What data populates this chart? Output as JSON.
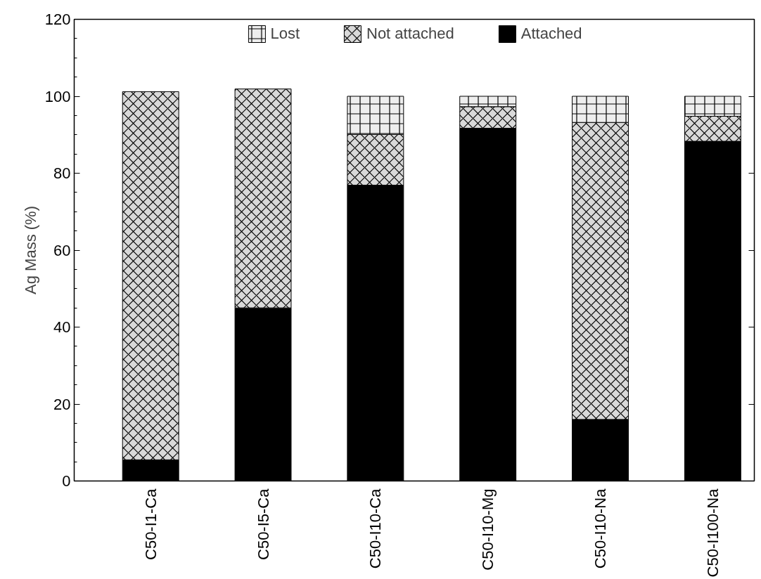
{
  "chart_data": {
    "type": "bar",
    "stacked": true,
    "ylabel": "Ag Mass (%)",
    "categories": [
      "C50-I1-Ca",
      "C50-I5-Ca",
      "C50-I10-Ca",
      "C50-I10-Mg",
      "C50-I10-Na",
      "C50-I100-Na"
    ],
    "series": [
      {
        "name": "Attached",
        "color": "#000000",
        "values": [
          5.5,
          45.0,
          76.9,
          91.7,
          16.0,
          88.3
        ]
      },
      {
        "name": "Not attached",
        "color": "#d9d9d9",
        "values": [
          95.7,
          56.9,
          13.2,
          5.6,
          77.2,
          6.5
        ]
      },
      {
        "name": "Lost",
        "color": "#eeeeee",
        "values": [
          null,
          null,
          9.9,
          2.7,
          6.8,
          5.2
        ]
      }
    ],
    "ylim": [
      0,
      120
    ],
    "yticks": [
      0,
      20,
      40,
      60,
      80,
      100,
      120
    ],
    "grid": false,
    "legend": "top"
  }
}
